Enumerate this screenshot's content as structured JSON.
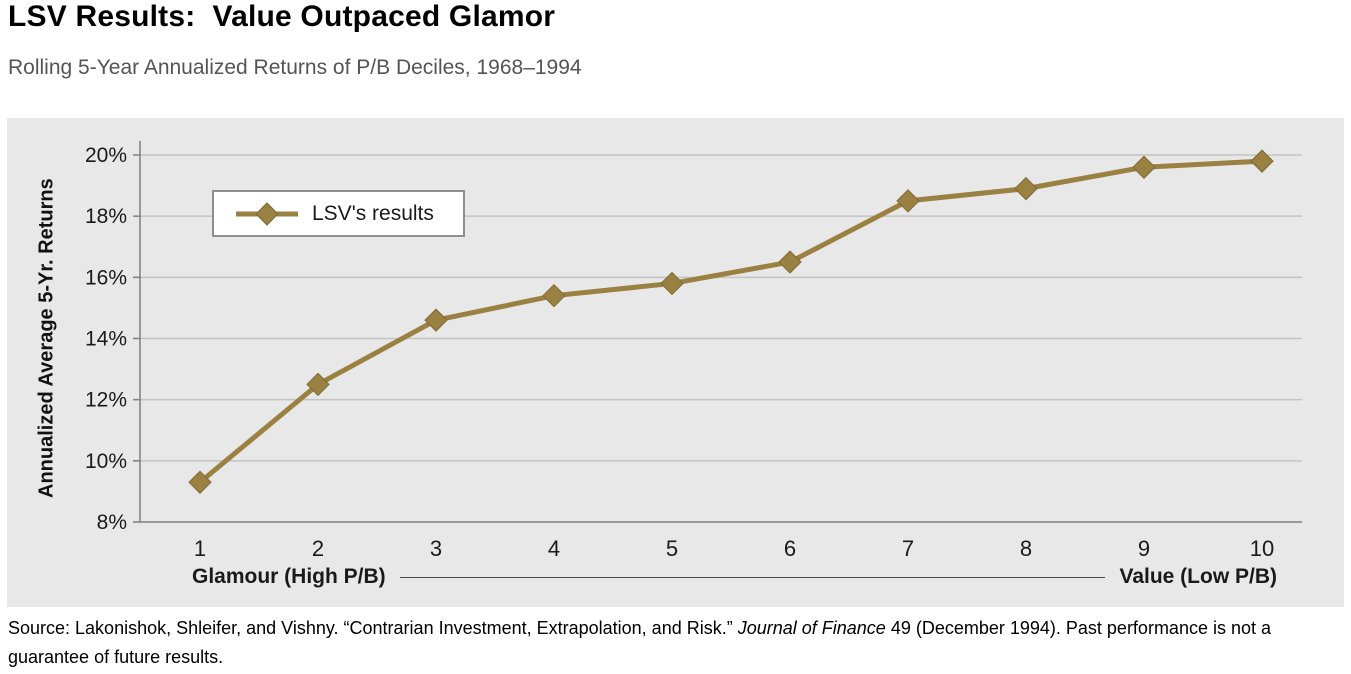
{
  "title": "LSV Results:  Value Outpaced Glamor",
  "subtitle": "Rolling 5-Year Annualized Returns of P/B Deciles, 1968–1994",
  "chart_data": {
    "type": "line",
    "title": "LSV Results: Value Outpaced Glamor",
    "subtitle": "Rolling 5-Year Annualized Returns of P/B Deciles, 1968–1994",
    "ylabel": "Annualized Average 5-Yr. Returns",
    "xlabel_left": "Glamour (High P/B)",
    "xlabel_right": "Value (Low P/B)",
    "categories": [
      "1",
      "2",
      "3",
      "4",
      "5",
      "6",
      "7",
      "8",
      "9",
      "10"
    ],
    "series": [
      {
        "name": "LSV's results",
        "values": [
          9.3,
          12.5,
          14.6,
          15.4,
          15.8,
          16.5,
          18.5,
          18.9,
          19.6,
          19.8
        ],
        "color": "#9a8142",
        "marker": "diamond",
        "marker_edge": "#7d6a35"
      }
    ],
    "ylim": [
      8,
      20
    ],
    "yticks": [
      {
        "value": 8,
        "label": "8%"
      },
      {
        "value": 10,
        "label": "10%"
      },
      {
        "value": 12,
        "label": "12%"
      },
      {
        "value": 14,
        "label": "14%"
      },
      {
        "value": 16,
        "label": "16%"
      },
      {
        "value": 18,
        "label": "18%"
      },
      {
        "value": 20,
        "label": "20%"
      }
    ],
    "grid": true,
    "grid_color": "#c3c3c3",
    "axis_color": "#7f7f7f",
    "plot_bg": "#e8e8e8",
    "legend_position": "top-left"
  },
  "source": {
    "prefix": "Source: Lakonishok, Shleifer, and Vishny. “Contrarian Investment, Extrapolation, and Risk.” ",
    "italic": "Journal of Finance",
    "suffix": " 49 (December 1994). Past performance is not a guarantee of future results."
  }
}
